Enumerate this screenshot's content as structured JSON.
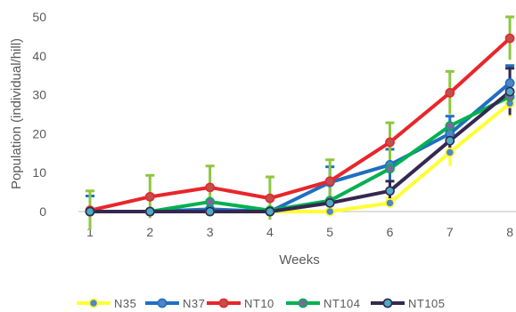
{
  "chart_data": {
    "type": "line",
    "xlabel": "Weeks",
    "ylabel": "Population (individual/hill)",
    "categories": [
      "1",
      "2",
      "3",
      "4",
      "5",
      "6",
      "7",
      "8"
    ],
    "y_ticks": [
      "0",
      "10",
      "20",
      "30",
      "40",
      "50"
    ],
    "ylim": [
      0,
      50
    ],
    "grid": false,
    "legend_position": "bottom",
    "series": [
      {
        "name": "N35",
        "line_color": "#FFFF33",
        "marker_color": "#4F86C6",
        "error_color": "#FFFF33",
        "values": [
          0,
          0,
          0,
          0,
          0,
          2.2,
          15.2,
          27.8
        ],
        "errors": [
          0,
          0,
          0,
          0,
          0,
          1.2,
          3.5,
          3.5
        ]
      },
      {
        "name": "N37",
        "line_color": "#1F6FC1",
        "marker_color": "#4F86C6",
        "error_color": "#1F6FC1",
        "values": [
          0,
          0,
          0.6,
          0,
          7.5,
          12.0,
          20.0,
          33.0
        ],
        "errors": [
          4.0,
          0,
          0,
          0,
          4.0,
          4.0,
          4.5,
          4.5
        ]
      },
      {
        "name": "NT10",
        "line_color": "#E8262B",
        "marker_color": "#C0504D",
        "error_color": "#8DC63F",
        "values": [
          0.3,
          3.8,
          6.2,
          3.4,
          7.8,
          17.8,
          30.5,
          44.5
        ],
        "errors": [
          5.0,
          5.5,
          5.5,
          5.5,
          5.5,
          5.0,
          5.5,
          5.5
        ]
      },
      {
        "name": "NT104",
        "line_color": "#00B050",
        "marker_color": "#8064A2",
        "error_color": "#8DC63F",
        "values": [
          0,
          0,
          2.5,
          0.3,
          2.8,
          11.0,
          22.0,
          29.5
        ],
        "errors": [
          0,
          0,
          0,
          0,
          0,
          0,
          0,
          0
        ]
      },
      {
        "name": "NT105",
        "line_color": "#35284F",
        "marker_color": "#4BACC6",
        "error_color": "#35284F",
        "values": [
          0,
          0,
          0,
          0,
          2.2,
          5.3,
          18.2,
          30.8
        ],
        "errors": [
          0,
          0,
          0,
          0,
          0,
          2.5,
          2.5,
          6.0
        ]
      }
    ]
  }
}
